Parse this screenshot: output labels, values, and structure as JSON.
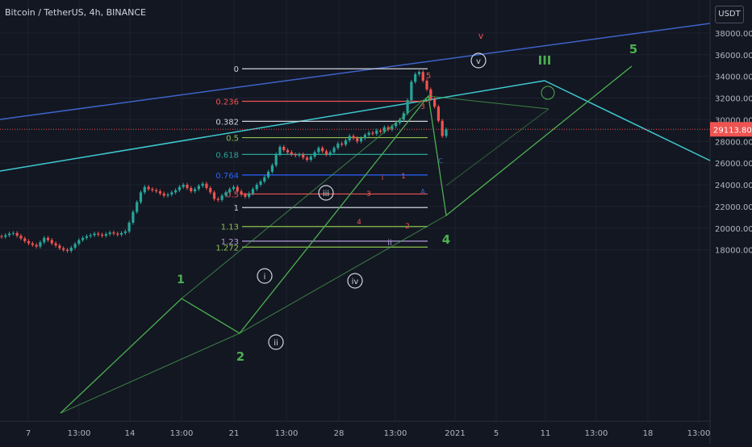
{
  "header": {
    "title": "Bitcoin / TetherUS, 4h, BINANCE",
    "currency_button": "USDT"
  },
  "chart_data": {
    "type": "candlestick",
    "title": "Bitcoin / TetherUS, 4h, BINANCE",
    "ylim": [
      17600,
      39000
    ],
    "y_ticks": [
      "18000.00",
      "20000.00",
      "22000.00",
      "24000.00",
      "26000.00",
      "28000.00",
      "30000.00",
      "32000.00",
      "34000.00",
      "36000.00",
      "38000.00"
    ],
    "x_ticks": [
      "7",
      "13:00",
      "14",
      "13:00",
      "21",
      "13:00",
      "28",
      "13:00",
      "2021",
      "5",
      "11",
      "13:00",
      "18",
      "13:00"
    ],
    "current_price": "29113.80",
    "colors": {
      "up": "#26a69a",
      "down": "#ef5350",
      "fib_white": "#d1d4dc",
      "fib_red": "#ef5350",
      "fib_green": "#8bc34a",
      "fib_teal": "#26a69a",
      "fib_blue": "#2962ff",
      "fib_lavender": "#b39ddb",
      "wave": "#4caf50",
      "channel_blue": "#3e63c9",
      "channel_cyan": "#3ec9d0"
    },
    "fib_levels": [
      {
        "label": "0",
        "price": 34700
      },
      {
        "label": "0.236",
        "price": 31700
      },
      {
        "label": "0.382",
        "price": 29850
      },
      {
        "label": "0.5",
        "price": 28350
      },
      {
        "label": "0.618",
        "price": 26800
      },
      {
        "label": "0.764",
        "price": 24900
      },
      {
        "label": "0.5",
        "price": 23150
      },
      {
        "label": "1",
        "price": 21900
      },
      {
        "label": "1.13",
        "price": 20150
      },
      {
        "label": "1.23",
        "price": 18800
      },
      {
        "label": "1.272",
        "price": 18250
      }
    ],
    "wave_labels": [
      "1",
      "2",
      "III",
      "4",
      "5",
      "i",
      "ii",
      "iii",
      "iv",
      "v",
      "1",
      "2",
      "3",
      "4",
      "5",
      "i",
      "ii",
      "3",
      "v",
      "A",
      "C"
    ],
    "candles_close": [
      19200,
      19350,
      19500,
      19550,
      19300,
      19050,
      18800,
      18600,
      18450,
      18300,
      18700,
      19100,
      18900,
      18600,
      18400,
      18150,
      18000,
      17900,
      18200,
      18550,
      18900,
      19100,
      19250,
      19350,
      19500,
      19400,
      19300,
      19450,
      19600,
      19500,
      19400,
      19550,
      19700,
      20500,
      21500,
      22400,
      23300,
      23800,
      23600,
      23500,
      23400,
      23200,
      23000,
      23100,
      23300,
      23500,
      23800,
      24000,
      23700,
      23400,
      23600,
      23900,
      24100,
      23700,
      23300,
      22700,
      22600,
      23000,
      23300,
      23600,
      23800,
      23400,
      23100,
      22900,
      23200,
      23600,
      24000,
      24300,
      24700,
      25200,
      25800,
      26800,
      27500,
      27200,
      27000,
      26800,
      26700,
      26800,
      26500,
      26300,
      26600,
      27000,
      27400,
      27100,
      26800,
      27000,
      27400,
      27800,
      27700,
      28100,
      28500,
      28300,
      28000,
      28300,
      28600,
      28800,
      28700,
      29000,
      28900,
      29300,
      29100,
      29400,
      29700,
      30000,
      30600,
      31800,
      33500,
      34200,
      34400,
      33600,
      32800,
      31900,
      31200,
      29900,
      28500,
      29100
    ],
    "candles_open": [
      19250,
      19200,
      19350,
      19500,
      19550,
      19300,
      19050,
      18800,
      18600,
      18450,
      18300,
      18700,
      19100,
      18900,
      18600,
      18400,
      18150,
      18000,
      17900,
      18200,
      18550,
      18900,
      19100,
      19250,
      19350,
      19500,
      19400,
      19300,
      19450,
      19600,
      19500,
      19400,
      19550,
      19700,
      20500,
      21500,
      22400,
      23300,
      23800,
      23600,
      23500,
      23400,
      23200,
      23000,
      23100,
      23300,
      23500,
      23800,
      24000,
      23700,
      23400,
      23600,
      23900,
      24100,
      23700,
      23300,
      22700,
      22600,
      23000,
      23300,
      23600,
      23800,
      23400,
      23100,
      22900,
      23200,
      23600,
      24000,
      24300,
      24700,
      25200,
      25800,
      26800,
      27500,
      27200,
      27000,
      26800,
      26700,
      26800,
      26500,
      26300,
      26600,
      27000,
      27400,
      27100,
      26800,
      27000,
      27400,
      27800,
      27700,
      28100,
      28500,
      28300,
      28000,
      28300,
      28600,
      28800,
      28700,
      29000,
      28900,
      29300,
      29100,
      29400,
      29700,
      30000,
      30600,
      31800,
      33500,
      34200,
      34400,
      33600,
      32800,
      31900,
      31200,
      29900,
      28500
    ]
  }
}
